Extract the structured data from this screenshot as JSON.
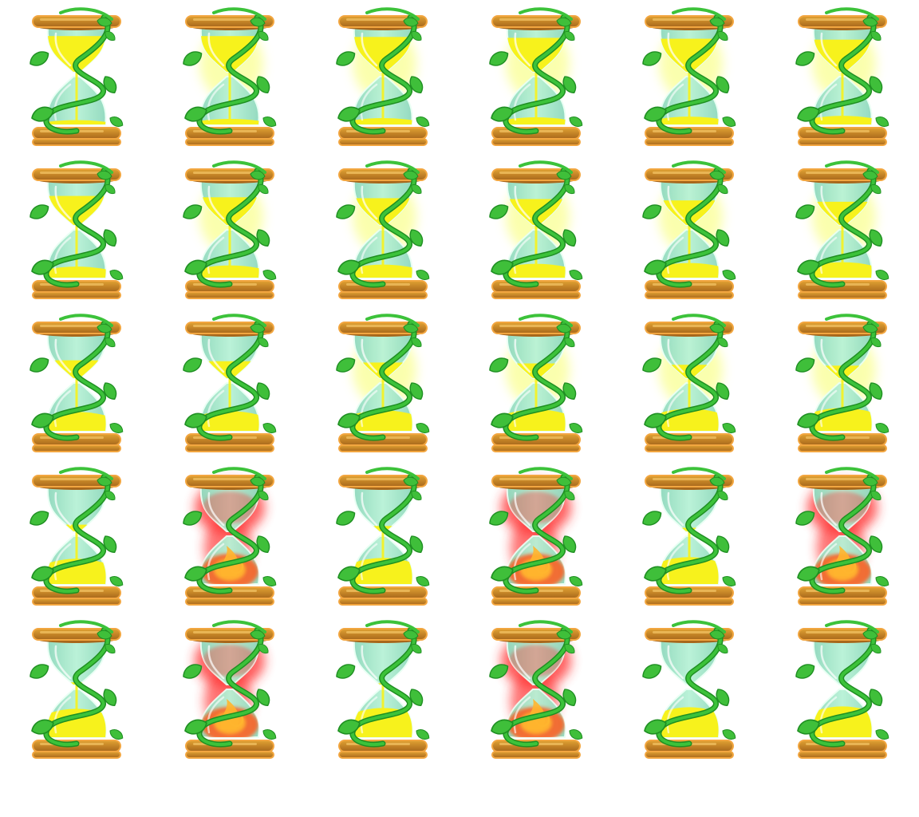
{
  "sprite_sheet": {
    "columns": 6,
    "rows": 5,
    "palette": {
      "wood_light": "#e0a233",
      "wood_dark": "#a8671b",
      "wood_outline": "#f2a640",
      "glass": "#b8f2d6",
      "glass_shade": "#8fd9bd",
      "sand": "#f7f21c",
      "sand_glow": "#faff9a",
      "vine": "#3cc23a",
      "vine_dark": "#1f8f22",
      "leaf": "#3fbf3a",
      "fire": "#ff5a1f",
      "fire_core": "#ffb52e",
      "fire_glow": "#ff2a2a"
    },
    "frames": [
      {
        "icon": "hourglass-icon",
        "top_sand": 0.8,
        "bottom_sand": 0.05,
        "glow": "none",
        "fire": false
      },
      {
        "icon": "hourglass-icon",
        "top_sand": 0.8,
        "bottom_sand": 0.08,
        "glow": "yellow",
        "fire": false
      },
      {
        "icon": "hourglass-icon",
        "top_sand": 0.78,
        "bottom_sand": 0.1,
        "glow": "yellow",
        "fire": false
      },
      {
        "icon": "hourglass-icon",
        "top_sand": 0.76,
        "bottom_sand": 0.12,
        "glow": "yellow",
        "fire": false
      },
      {
        "icon": "hourglass-icon",
        "top_sand": 0.74,
        "bottom_sand": 0.14,
        "glow": "yellow",
        "fire": false
      },
      {
        "icon": "hourglass-icon",
        "top_sand": 0.72,
        "bottom_sand": 0.16,
        "glow": "yellow",
        "fire": false
      },
      {
        "icon": "hourglass-icon",
        "top_sand": 0.65,
        "bottom_sand": 0.22,
        "glow": "none",
        "fire": false
      },
      {
        "icon": "hourglass-icon",
        "top_sand": 0.62,
        "bottom_sand": 0.25,
        "glow": "yellow",
        "fire": false
      },
      {
        "icon": "hourglass-icon",
        "top_sand": 0.6,
        "bottom_sand": 0.27,
        "glow": "yellow",
        "fire": false
      },
      {
        "icon": "hourglass-icon",
        "top_sand": 0.58,
        "bottom_sand": 0.29,
        "glow": "yellow",
        "fire": false
      },
      {
        "icon": "hourglass-icon",
        "top_sand": 0.55,
        "bottom_sand": 0.31,
        "glow": "yellow",
        "fire": false
      },
      {
        "icon": "hourglass-icon",
        "top_sand": 0.52,
        "bottom_sand": 0.33,
        "glow": "yellow",
        "fire": false
      },
      {
        "icon": "hourglass-icon",
        "top_sand": 0.4,
        "bottom_sand": 0.42,
        "glow": "none",
        "fire": false
      },
      {
        "icon": "hourglass-icon",
        "top_sand": 0.38,
        "bottom_sand": 0.44,
        "glow": "none",
        "fire": false
      },
      {
        "icon": "hourglass-icon",
        "top_sand": 0.35,
        "bottom_sand": 0.46,
        "glow": "yellow",
        "fire": false
      },
      {
        "icon": "hourglass-icon",
        "top_sand": 0.33,
        "bottom_sand": 0.48,
        "glow": "yellow",
        "fire": false
      },
      {
        "icon": "hourglass-icon",
        "top_sand": 0.3,
        "bottom_sand": 0.5,
        "glow": "yellow",
        "fire": false
      },
      {
        "icon": "hourglass-icon",
        "top_sand": 0.28,
        "bottom_sand": 0.52,
        "glow": "yellow",
        "fire": false
      },
      {
        "icon": "hourglass-icon",
        "top_sand": 0.15,
        "bottom_sand": 0.58,
        "glow": "none",
        "fire": false
      },
      {
        "icon": "hourglass-icon",
        "top_sand": 0.0,
        "bottom_sand": 0.0,
        "glow": "red",
        "fire": true
      },
      {
        "icon": "hourglass-icon",
        "top_sand": 0.12,
        "bottom_sand": 0.6,
        "glow": "none",
        "fire": false
      },
      {
        "icon": "hourglass-icon",
        "top_sand": 0.0,
        "bottom_sand": 0.0,
        "glow": "red",
        "fire": true
      },
      {
        "icon": "hourglass-icon",
        "top_sand": 0.08,
        "bottom_sand": 0.62,
        "glow": "none",
        "fire": false
      },
      {
        "icon": "hourglass-icon",
        "top_sand": 0.0,
        "bottom_sand": 0.0,
        "glow": "red",
        "fire": true
      },
      {
        "icon": "hourglass-icon",
        "top_sand": 0.05,
        "bottom_sand": 0.66,
        "glow": "none",
        "fire": false
      },
      {
        "icon": "hourglass-icon",
        "top_sand": 0.0,
        "bottom_sand": 0.0,
        "glow": "red",
        "fire": true
      },
      {
        "icon": "hourglass-icon",
        "top_sand": 0.03,
        "bottom_sand": 0.68,
        "glow": "none",
        "fire": false
      },
      {
        "icon": "hourglass-icon",
        "top_sand": 0.0,
        "bottom_sand": 0.0,
        "glow": "red",
        "fire": true
      },
      {
        "icon": "hourglass-icon",
        "top_sand": 0.0,
        "bottom_sand": 0.7,
        "glow": "none",
        "fire": false
      },
      {
        "icon": "hourglass-icon",
        "top_sand": 0.0,
        "bottom_sand": 0.72,
        "glow": "none",
        "fire": false
      }
    ]
  }
}
